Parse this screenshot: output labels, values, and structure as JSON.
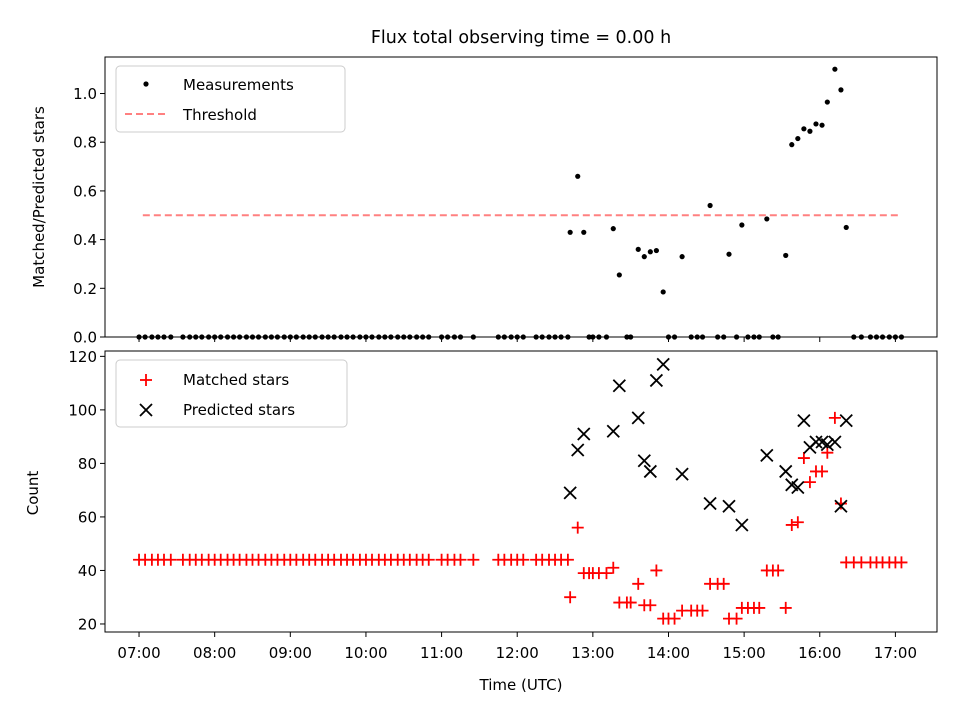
{
  "chart_data": [
    {
      "type": "scatter",
      "title": "Flux total observing time = 0.00 h",
      "xlabel": "",
      "ylabel": "Matched/Predicted stars",
      "xlim": [
        6.55,
        17.55
      ],
      "ylim": [
        0.0,
        1.15
      ],
      "x_ticks": [
        "07:00",
        "08:00",
        "09:00",
        "10:00",
        "11:00",
        "12:00",
        "13:00",
        "14:00",
        "15:00",
        "16:00",
        "17:00"
      ],
      "y_ticks": [
        "0.0",
        "0.2",
        "0.4",
        "0.6",
        "0.8",
        "1.0"
      ],
      "y_tick_values": [
        0.0,
        0.2,
        0.4,
        0.6,
        0.8,
        1.0
      ],
      "legend_position": "top-left",
      "legend": [
        "Measurements",
        "Threshold"
      ],
      "threshold": {
        "name": "Threshold",
        "value": 0.5,
        "x_range": [
          7.05,
          17.05
        ],
        "color": "#ff8080",
        "style": "dashed"
      },
      "series": [
        {
          "name": "Measurements",
          "marker": "dot",
          "color": "#000000",
          "points": [
            [
              7.0,
              0
            ],
            [
              7.08,
              0
            ],
            [
              7.17,
              0
            ],
            [
              7.25,
              0
            ],
            [
              7.33,
              0
            ],
            [
              7.42,
              0
            ],
            [
              7.58,
              0
            ],
            [
              7.67,
              0
            ],
            [
              7.75,
              0
            ],
            [
              7.83,
              0
            ],
            [
              7.92,
              0
            ],
            [
              8.0,
              0
            ],
            [
              8.08,
              0
            ],
            [
              8.17,
              0
            ],
            [
              8.25,
              0
            ],
            [
              8.33,
              0
            ],
            [
              8.42,
              0
            ],
            [
              8.5,
              0
            ],
            [
              8.58,
              0
            ],
            [
              8.67,
              0
            ],
            [
              8.75,
              0
            ],
            [
              8.83,
              0
            ],
            [
              8.92,
              0
            ],
            [
              9.0,
              0
            ],
            [
              9.08,
              0
            ],
            [
              9.17,
              0
            ],
            [
              9.25,
              0
            ],
            [
              9.33,
              0
            ],
            [
              9.42,
              0
            ],
            [
              9.5,
              0
            ],
            [
              9.58,
              0
            ],
            [
              9.67,
              0
            ],
            [
              9.75,
              0
            ],
            [
              9.83,
              0
            ],
            [
              9.92,
              0
            ],
            [
              10.0,
              0
            ],
            [
              10.08,
              0
            ],
            [
              10.17,
              0
            ],
            [
              10.25,
              0
            ],
            [
              10.33,
              0
            ],
            [
              10.42,
              0
            ],
            [
              10.5,
              0
            ],
            [
              10.58,
              0
            ],
            [
              10.67,
              0
            ],
            [
              10.75,
              0
            ],
            [
              10.83,
              0
            ],
            [
              11.0,
              0
            ],
            [
              11.08,
              0
            ],
            [
              11.17,
              0
            ],
            [
              11.25,
              0
            ],
            [
              11.42,
              0
            ],
            [
              11.75,
              0
            ],
            [
              11.83,
              0
            ],
            [
              11.92,
              0
            ],
            [
              12.0,
              0
            ],
            [
              12.08,
              0
            ],
            [
              12.25,
              0
            ],
            [
              12.33,
              0
            ],
            [
              12.42,
              0
            ],
            [
              12.5,
              0
            ],
            [
              12.58,
              0
            ],
            [
              12.67,
              0
            ],
            [
              12.7,
              0.43
            ],
            [
              12.8,
              0.66
            ],
            [
              12.88,
              0.43
            ],
            [
              12.95,
              0
            ],
            [
              13.0,
              0
            ],
            [
              13.08,
              0
            ],
            [
              13.18,
              0
            ],
            [
              13.27,
              0.445
            ],
            [
              13.35,
              0.255
            ],
            [
              13.45,
              0
            ],
            [
              13.5,
              0
            ],
            [
              13.6,
              0.36
            ],
            [
              13.68,
              0.33
            ],
            [
              13.76,
              0.35
            ],
            [
              13.84,
              0.355
            ],
            [
              13.93,
              0.185
            ],
            [
              14.0,
              0
            ],
            [
              14.08,
              0
            ],
            [
              14.18,
              0.33
            ],
            [
              14.3,
              0
            ],
            [
              14.38,
              0
            ],
            [
              14.45,
              0
            ],
            [
              14.55,
              0.54
            ],
            [
              14.65,
              0
            ],
            [
              14.73,
              0
            ],
            [
              14.8,
              0.34
            ],
            [
              14.9,
              0
            ],
            [
              14.97,
              0.46
            ],
            [
              15.05,
              0
            ],
            [
              15.13,
              0
            ],
            [
              15.2,
              0
            ],
            [
              15.3,
              0.485
            ],
            [
              15.38,
              0
            ],
            [
              15.45,
              0
            ],
            [
              15.55,
              0.335
            ],
            [
              15.63,
              0.79
            ],
            [
              15.71,
              0.815
            ],
            [
              15.79,
              0.855
            ],
            [
              15.87,
              0.845
            ],
            [
              15.95,
              0.875
            ],
            [
              16.03,
              0.87
            ],
            [
              16.1,
              0.965
            ],
            [
              16.2,
              1.1
            ],
            [
              16.28,
              1.015
            ],
            [
              16.35,
              0.45
            ],
            [
              16.45,
              0
            ],
            [
              16.55,
              0
            ],
            [
              16.67,
              0
            ],
            [
              16.75,
              0
            ],
            [
              16.83,
              0
            ],
            [
              16.92,
              0
            ],
            [
              17.0,
              0
            ],
            [
              17.08,
              0
            ]
          ]
        }
      ]
    },
    {
      "type": "scatter",
      "title": "",
      "xlabel": "Time (UTC)",
      "ylabel": "Count",
      "xlim": [
        6.55,
        17.55
      ],
      "ylim": [
        17,
        122
      ],
      "x_ticks": [
        "07:00",
        "08:00",
        "09:00",
        "10:00",
        "11:00",
        "12:00",
        "13:00",
        "14:00",
        "15:00",
        "16:00",
        "17:00"
      ],
      "x_tick_values": [
        7,
        8,
        9,
        10,
        11,
        12,
        13,
        14,
        15,
        16,
        17
      ],
      "y_ticks": [
        "20",
        "40",
        "60",
        "80",
        "100",
        "120"
      ],
      "y_tick_values": [
        20,
        40,
        60,
        80,
        100,
        120
      ],
      "legend_position": "top-left",
      "legend": [
        "Matched stars",
        "Predicted stars"
      ],
      "series": [
        {
          "name": "Matched stars",
          "marker": "plus",
          "color": "#ff0000",
          "points": [
            [
              7.0,
              44
            ],
            [
              7.08,
              44
            ],
            [
              7.17,
              44
            ],
            [
              7.25,
              44
            ],
            [
              7.33,
              44
            ],
            [
              7.42,
              44
            ],
            [
              7.58,
              44
            ],
            [
              7.67,
              44
            ],
            [
              7.75,
              44
            ],
            [
              7.83,
              44
            ],
            [
              7.92,
              44
            ],
            [
              8.0,
              44
            ],
            [
              8.08,
              44
            ],
            [
              8.17,
              44
            ],
            [
              8.25,
              44
            ],
            [
              8.33,
              44
            ],
            [
              8.42,
              44
            ],
            [
              8.5,
              44
            ],
            [
              8.58,
              44
            ],
            [
              8.67,
              44
            ],
            [
              8.75,
              44
            ],
            [
              8.83,
              44
            ],
            [
              8.92,
              44
            ],
            [
              9.0,
              44
            ],
            [
              9.08,
              44
            ],
            [
              9.17,
              44
            ],
            [
              9.25,
              44
            ],
            [
              9.33,
              44
            ],
            [
              9.42,
              44
            ],
            [
              9.5,
              44
            ],
            [
              9.58,
              44
            ],
            [
              9.67,
              44
            ],
            [
              9.75,
              44
            ],
            [
              9.83,
              44
            ],
            [
              9.92,
              44
            ],
            [
              10.0,
              44
            ],
            [
              10.08,
              44
            ],
            [
              10.17,
              44
            ],
            [
              10.25,
              44
            ],
            [
              10.33,
              44
            ],
            [
              10.42,
              44
            ],
            [
              10.5,
              44
            ],
            [
              10.58,
              44
            ],
            [
              10.67,
              44
            ],
            [
              10.75,
              44
            ],
            [
              10.83,
              44
            ],
            [
              11.0,
              44
            ],
            [
              11.08,
              44
            ],
            [
              11.17,
              44
            ],
            [
              11.25,
              44
            ],
            [
              11.42,
              44
            ],
            [
              11.75,
              44
            ],
            [
              11.83,
              44
            ],
            [
              11.92,
              44
            ],
            [
              12.0,
              44
            ],
            [
              12.08,
              44
            ],
            [
              12.25,
              44
            ],
            [
              12.33,
              44
            ],
            [
              12.42,
              44
            ],
            [
              12.5,
              44
            ],
            [
              12.58,
              44
            ],
            [
              12.67,
              44
            ],
            [
              12.7,
              30
            ],
            [
              12.8,
              56
            ],
            [
              12.88,
              39
            ],
            [
              12.95,
              39
            ],
            [
              13.0,
              39
            ],
            [
              13.08,
              39
            ],
            [
              13.18,
              39
            ],
            [
              13.27,
              41
            ],
            [
              13.35,
              28
            ],
            [
              13.45,
              28
            ],
            [
              13.5,
              28
            ],
            [
              13.6,
              35
            ],
            [
              13.68,
              27
            ],
            [
              13.76,
              27
            ],
            [
              13.84,
              40
            ],
            [
              13.93,
              22
            ],
            [
              14.0,
              22
            ],
            [
              14.08,
              22
            ],
            [
              14.18,
              25
            ],
            [
              14.3,
              25
            ],
            [
              14.38,
              25
            ],
            [
              14.45,
              25
            ],
            [
              14.55,
              35
            ],
            [
              14.65,
              35
            ],
            [
              14.73,
              35
            ],
            [
              14.8,
              22
            ],
            [
              14.9,
              22
            ],
            [
              14.97,
              26
            ],
            [
              15.05,
              26
            ],
            [
              15.13,
              26
            ],
            [
              15.2,
              26
            ],
            [
              15.3,
              40
            ],
            [
              15.38,
              40
            ],
            [
              15.45,
              40
            ],
            [
              15.55,
              26
            ],
            [
              15.63,
              57
            ],
            [
              15.71,
              58
            ],
            [
              15.79,
              82
            ],
            [
              15.87,
              73
            ],
            [
              15.95,
              77
            ],
            [
              16.03,
              77
            ],
            [
              16.1,
              84
            ],
            [
              16.2,
              97
            ],
            [
              16.28,
              65
            ],
            [
              16.35,
              43
            ],
            [
              16.45,
              43
            ],
            [
              16.55,
              43
            ],
            [
              16.67,
              43
            ],
            [
              16.75,
              43
            ],
            [
              16.83,
              43
            ],
            [
              16.92,
              43
            ],
            [
              17.0,
              43
            ],
            [
              17.08,
              43
            ]
          ]
        },
        {
          "name": "Predicted stars",
          "marker": "x",
          "color": "#000000",
          "points": [
            [
              12.7,
              69
            ],
            [
              12.8,
              85
            ],
            [
              12.88,
              91
            ],
            [
              13.27,
              92
            ],
            [
              13.35,
              109
            ],
            [
              13.6,
              97
            ],
            [
              13.68,
              81
            ],
            [
              13.76,
              77
            ],
            [
              13.84,
              111
            ],
            [
              13.93,
              117
            ],
            [
              14.18,
              76
            ],
            [
              14.55,
              65
            ],
            [
              14.8,
              64
            ],
            [
              14.97,
              57
            ],
            [
              15.3,
              83
            ],
            [
              15.55,
              77
            ],
            [
              15.63,
              72
            ],
            [
              15.71,
              71
            ],
            [
              15.79,
              96
            ],
            [
              15.87,
              86
            ],
            [
              15.95,
              88
            ],
            [
              16.03,
              88
            ],
            [
              16.1,
              87
            ],
            [
              16.2,
              88
            ],
            [
              16.28,
              64
            ],
            [
              16.35,
              96
            ]
          ]
        }
      ]
    }
  ]
}
